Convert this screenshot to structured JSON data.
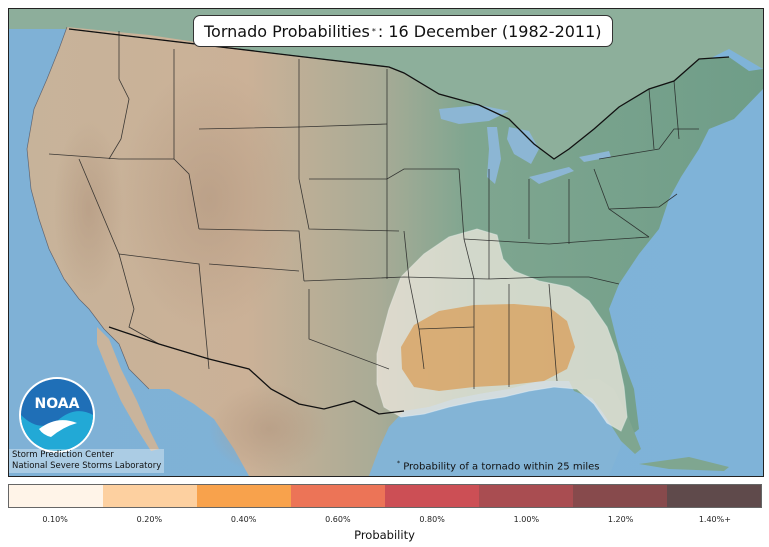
{
  "title": {
    "main": "Tornado Probabilities",
    "marker": "*",
    "rest": ": 16 December (1982-2011)"
  },
  "credit": {
    "line1": "Storm Prediction Center",
    "line2": "National Severe Storms Laboratory"
  },
  "footnote": {
    "marker": "*",
    "text": "Probability of a tornado within 25 miles"
  },
  "logo": {
    "text": "NOAA"
  },
  "legend": {
    "title": "Probability",
    "entries": [
      {
        "label": "0.10%",
        "color": "#fff4e8"
      },
      {
        "label": "0.20%",
        "color": "#fdd0a0"
      },
      {
        "label": "0.40%",
        "color": "#f8a24c"
      },
      {
        "label": "0.60%",
        "color": "#ec7457"
      },
      {
        "label": "0.80%",
        "color": "#cc4f55"
      },
      {
        "label": "1.00%",
        "color": "#a94d51"
      },
      {
        "label": "1.20%",
        "color": "#874a4c"
      },
      {
        "label": "1.40%+",
        "color": "#5f4a4b"
      }
    ]
  },
  "probability_regions": [
    {
      "level": "0.10%",
      "area": "Texas, Arkansas, Louisiana, Mississippi, Alabama, Georgia, Tennessee, Florida"
    },
    {
      "level": "0.20%",
      "area": "Louisiana, Mississippi, Alabama"
    }
  ]
}
